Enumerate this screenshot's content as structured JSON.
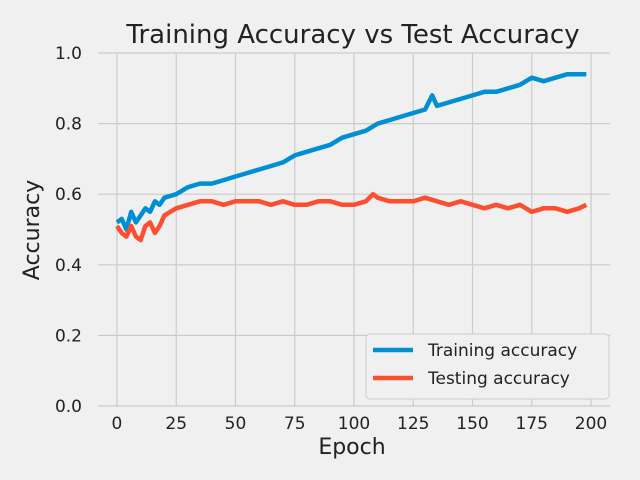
{
  "chart_data": {
    "type": "line",
    "title": "Training Accuracy vs Test Accuracy",
    "xlabel": "Epoch",
    "ylabel": "Accuracy",
    "xlim": [
      -8,
      208
    ],
    "ylim": [
      0.0,
      1.0
    ],
    "xticks": [
      0,
      25,
      50,
      75,
      100,
      125,
      150,
      175,
      200
    ],
    "yticks": [
      0.0,
      0.2,
      0.4,
      0.6,
      0.8,
      1.0
    ],
    "xtick_labels": [
      "0",
      "25",
      "50",
      "75",
      "100",
      "125",
      "150",
      "175",
      "200"
    ],
    "ytick_labels": [
      "0.0",
      "0.2",
      "0.4",
      "0.6",
      "0.8",
      "1.0"
    ],
    "grid": true,
    "legend_position": "lower-right",
    "series": [
      {
        "name": "Training accuracy",
        "color": "#008fd5",
        "x": [
          0,
          2,
          4,
          6,
          8,
          10,
          12,
          14,
          16,
          18,
          20,
          25,
          30,
          35,
          40,
          45,
          50,
          55,
          60,
          65,
          70,
          75,
          80,
          85,
          90,
          95,
          100,
          105,
          110,
          115,
          120,
          125,
          130,
          133,
          135,
          140,
          145,
          150,
          155,
          160,
          165,
          170,
          175,
          180,
          185,
          190,
          195,
          198
        ],
        "y": [
          0.52,
          0.53,
          0.5,
          0.55,
          0.52,
          0.54,
          0.56,
          0.55,
          0.58,
          0.57,
          0.59,
          0.6,
          0.62,
          0.63,
          0.63,
          0.64,
          0.65,
          0.66,
          0.67,
          0.68,
          0.69,
          0.71,
          0.72,
          0.73,
          0.74,
          0.76,
          0.77,
          0.78,
          0.8,
          0.81,
          0.82,
          0.83,
          0.84,
          0.88,
          0.85,
          0.86,
          0.87,
          0.88,
          0.89,
          0.89,
          0.9,
          0.91,
          0.93,
          0.92,
          0.93,
          0.94,
          0.94,
          0.94
        ]
      },
      {
        "name": "Testing accuracy",
        "color": "#fc4f30",
        "x": [
          0,
          2,
          4,
          6,
          8,
          10,
          12,
          14,
          16,
          18,
          20,
          25,
          30,
          35,
          40,
          45,
          50,
          55,
          60,
          65,
          70,
          75,
          80,
          85,
          90,
          95,
          100,
          105,
          108,
          110,
          115,
          120,
          125,
          130,
          135,
          140,
          145,
          150,
          155,
          160,
          165,
          170,
          175,
          180,
          185,
          190,
          195,
          198
        ],
        "y": [
          0.51,
          0.49,
          0.48,
          0.51,
          0.48,
          0.47,
          0.51,
          0.52,
          0.49,
          0.51,
          0.54,
          0.56,
          0.57,
          0.58,
          0.58,
          0.57,
          0.58,
          0.58,
          0.58,
          0.57,
          0.58,
          0.57,
          0.57,
          0.58,
          0.58,
          0.57,
          0.57,
          0.58,
          0.6,
          0.59,
          0.58,
          0.58,
          0.58,
          0.59,
          0.58,
          0.57,
          0.58,
          0.57,
          0.56,
          0.57,
          0.56,
          0.57,
          0.55,
          0.56,
          0.56,
          0.55,
          0.56,
          0.57
        ]
      }
    ]
  }
}
